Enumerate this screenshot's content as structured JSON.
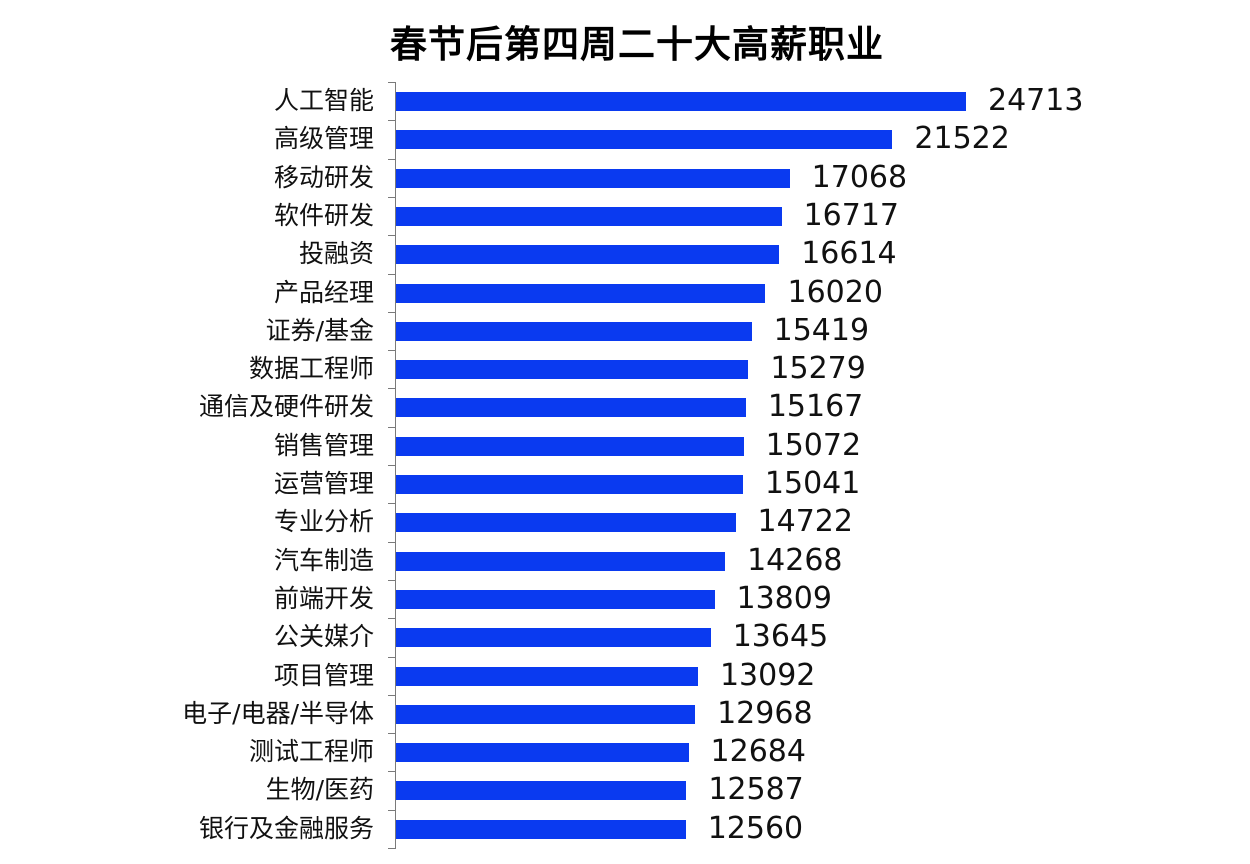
{
  "chart_data": {
    "type": "bar",
    "orientation": "horizontal",
    "title": "春节后第四周二十大高薪职业",
    "xlabel": "",
    "ylabel": "",
    "xlim": [
      0,
      24713
    ],
    "grid": false,
    "legend": null,
    "bar_color": "#0a3af0",
    "categories": [
      "人工智能",
      "高级管理",
      "移动研发",
      "软件研发",
      "投融资",
      "产品经理",
      "证券/基金",
      "数据工程师",
      "通信及硬件研发",
      "销售管理",
      "运营管理",
      "专业分析",
      "汽车制造",
      "前端开发",
      "公关媒介",
      "项目管理",
      "电子/电器/半导体",
      "测试工程师",
      "生物/医药",
      "银行及金融服务"
    ],
    "values": [
      24713,
      21522,
      17068,
      16717,
      16614,
      16020,
      15419,
      15279,
      15167,
      15072,
      15041,
      14722,
      14268,
      13809,
      13645,
      13092,
      12968,
      12684,
      12587,
      12560
    ]
  }
}
